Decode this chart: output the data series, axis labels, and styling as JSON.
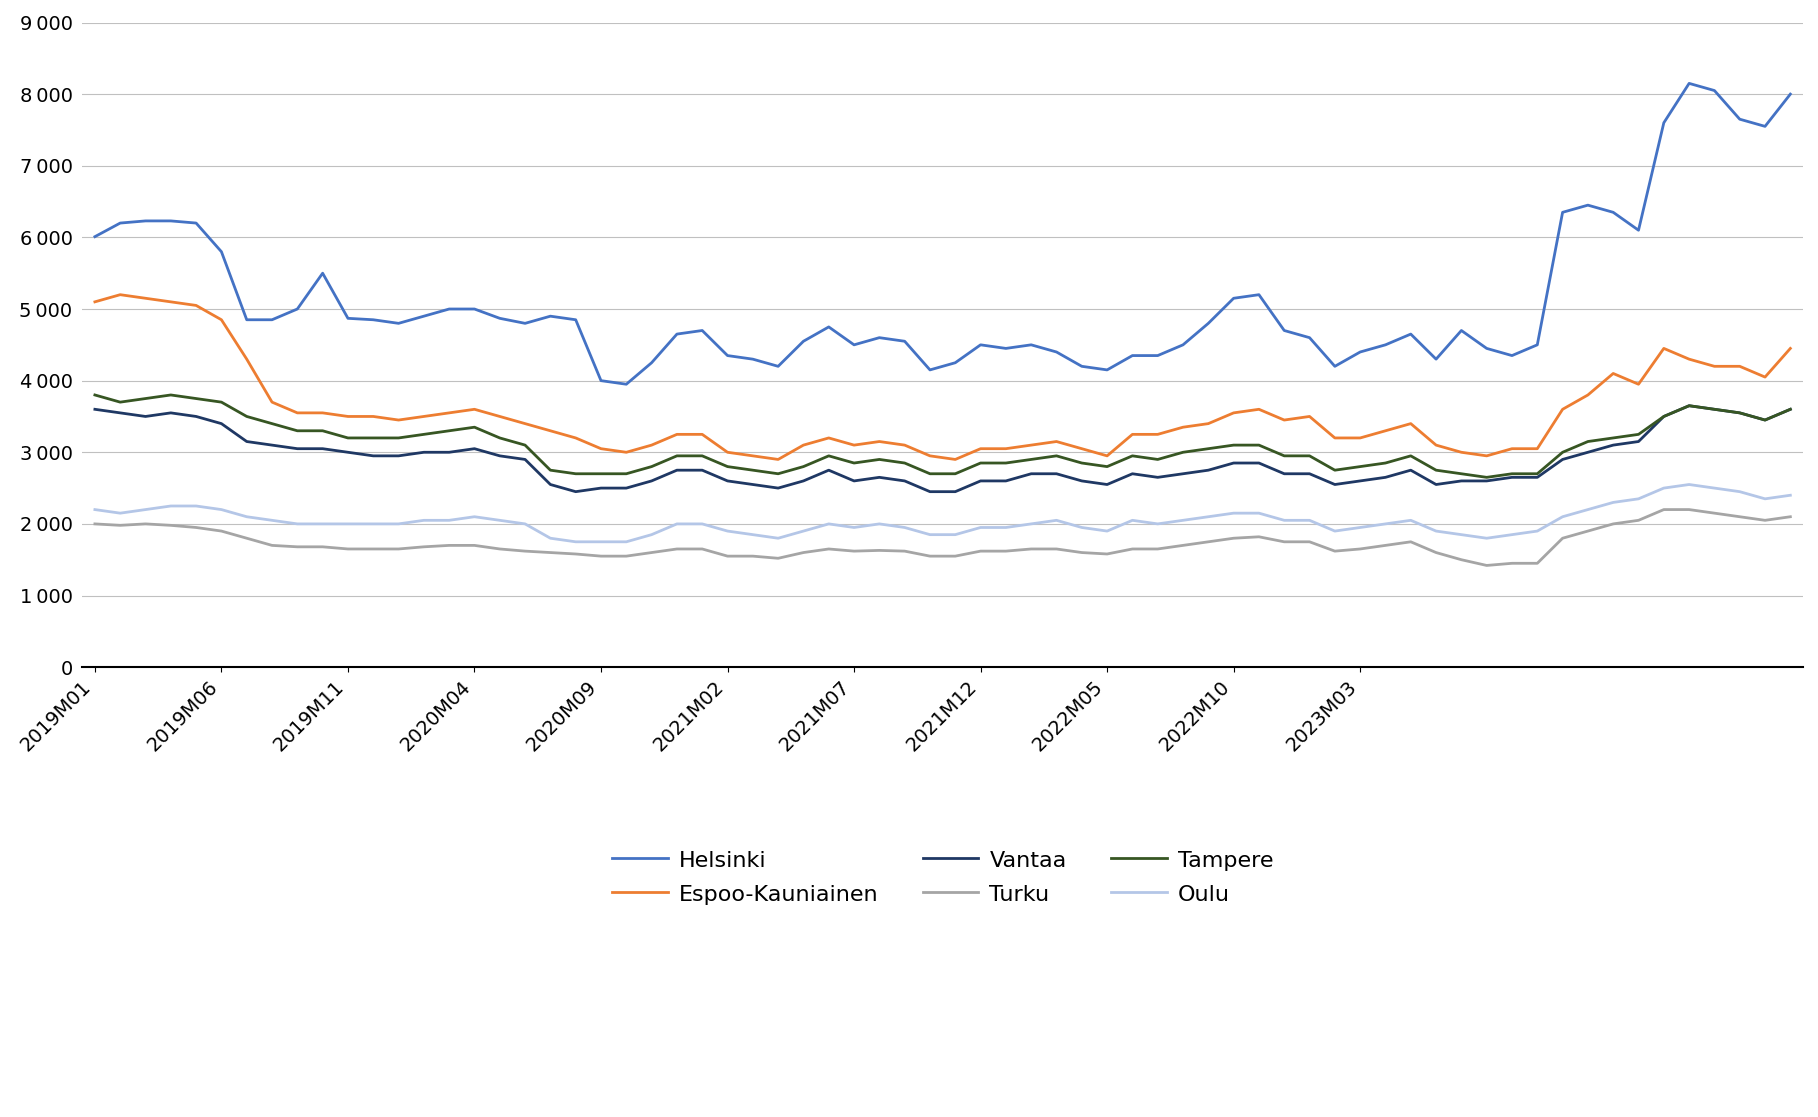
{
  "title": "",
  "xlabel": "",
  "ylabel": "",
  "ylim": [
    0,
    9000
  ],
  "yticks": [
    0,
    1000,
    2000,
    3000,
    4000,
    5000,
    6000,
    7000,
    8000,
    9000
  ],
  "x_labels": [
    "2019M01",
    "2019M06",
    "2019M11",
    "2020M04",
    "2020M09",
    "2021M02",
    "2021M07",
    "2021M12",
    "2022M05",
    "2022M10",
    "2023M03"
  ],
  "series": {
    "Helsinki": {
      "color": "#4472C4",
      "values": [
        6010,
        6200,
        6230,
        6230,
        6200,
        5800,
        4850,
        4850,
        5000,
        5500,
        4870,
        4850,
        4800,
        4900,
        5000,
        5000,
        4870,
        4800,
        4900,
        4850,
        4000,
        3950,
        4250,
        4650,
        4700,
        4350,
        4300,
        4200,
        4550,
        4750,
        4500,
        4600,
        4550,
        4150,
        4250,
        4500,
        4450,
        4500,
        4400,
        4200,
        4150,
        4350,
        4350,
        4500,
        4800,
        5150,
        5200,
        4700,
        4600,
        4200,
        4400,
        4500,
        4650,
        4300,
        4700,
        4450,
        4350,
        4500,
        6350,
        6450,
        6350,
        6100,
        7600,
        8150,
        8050,
        7650,
        7550,
        8000
      ]
    },
    "Espoo-Kauniainen": {
      "color": "#ED7D31",
      "values": [
        5100,
        5200,
        5150,
        5100,
        5050,
        4850,
        4300,
        3700,
        3550,
        3550,
        3500,
        3500,
        3450,
        3500,
        3550,
        3600,
        3500,
        3400,
        3300,
        3200,
        3050,
        3000,
        3100,
        3250,
        3250,
        3000,
        2950,
        2900,
        3100,
        3200,
        3100,
        3150,
        3100,
        2950,
        2900,
        3050,
        3050,
        3100,
        3150,
        3050,
        2950,
        3250,
        3250,
        3350,
        3400,
        3550,
        3600,
        3450,
        3500,
        3200,
        3200,
        3300,
        3400,
        3100,
        3000,
        2950,
        3050,
        3050,
        3600,
        3800,
        4100,
        3950,
        4450,
        4300,
        4200,
        4200,
        4050,
        4450
      ]
    },
    "Vantaa": {
      "color": "#1F3864",
      "values": [
        3600,
        3550,
        3500,
        3550,
        3500,
        3400,
        3150,
        3100,
        3050,
        3050,
        3000,
        2950,
        2950,
        3000,
        3000,
        3050,
        2950,
        2900,
        2550,
        2450,
        2500,
        2500,
        2600,
        2750,
        2750,
        2600,
        2550,
        2500,
        2600,
        2750,
        2600,
        2650,
        2600,
        2450,
        2450,
        2600,
        2600,
        2700,
        2700,
        2600,
        2550,
        2700,
        2650,
        2700,
        2750,
        2850,
        2850,
        2700,
        2700,
        2550,
        2600,
        2650,
        2750,
        2550,
        2600,
        2600,
        2650,
        2650,
        2900,
        3000,
        3100,
        3150,
        3500,
        3650,
        3600,
        3550,
        3450,
        3600
      ]
    },
    "Turku": {
      "color": "#A5A5A5",
      "values": [
        2000,
        1980,
        2000,
        1980,
        1950,
        1900,
        1800,
        1700,
        1680,
        1680,
        1650,
        1650,
        1650,
        1680,
        1700,
        1700,
        1650,
        1620,
        1600,
        1580,
        1550,
        1550,
        1600,
        1650,
        1650,
        1550,
        1550,
        1520,
        1600,
        1650,
        1620,
        1630,
        1620,
        1550,
        1550,
        1620,
        1620,
        1650,
        1650,
        1600,
        1580,
        1650,
        1650,
        1700,
        1750,
        1800,
        1820,
        1750,
        1750,
        1620,
        1650,
        1700,
        1750,
        1600,
        1500,
        1420,
        1450,
        1450,
        1800,
        1900,
        2000,
        2050,
        2200,
        2200,
        2150,
        2100,
        2050,
        2100
      ]
    },
    "Tampere": {
      "color": "#375623",
      "values": [
        3800,
        3700,
        3750,
        3800,
        3750,
        3700,
        3500,
        3400,
        3300,
        3300,
        3200,
        3200,
        3200,
        3250,
        3300,
        3350,
        3200,
        3100,
        2750,
        2700,
        2700,
        2700,
        2800,
        2950,
        2950,
        2800,
        2750,
        2700,
        2800,
        2950,
        2850,
        2900,
        2850,
        2700,
        2700,
        2850,
        2850,
        2900,
        2950,
        2850,
        2800,
        2950,
        2900,
        3000,
        3050,
        3100,
        3100,
        2950,
        2950,
        2750,
        2800,
        2850,
        2950,
        2750,
        2700,
        2650,
        2700,
        2700,
        3000,
        3150,
        3200,
        3250,
        3500,
        3650,
        3600,
        3550,
        3450,
        3600
      ]
    },
    "Oulu": {
      "color": "#B4C6E7",
      "values": [
        2200,
        2150,
        2200,
        2250,
        2250,
        2200,
        2100,
        2050,
        2000,
        2000,
        2000,
        2000,
        2000,
        2050,
        2050,
        2100,
        2050,
        2000,
        1800,
        1750,
        1750,
        1750,
        1850,
        2000,
        2000,
        1900,
        1850,
        1800,
        1900,
        2000,
        1950,
        2000,
        1950,
        1850,
        1850,
        1950,
        1950,
        2000,
        2050,
        1950,
        1900,
        2050,
        2000,
        2050,
        2100,
        2150,
        2150,
        2050,
        2050,
        1900,
        1950,
        2000,
        2050,
        1900,
        1850,
        1800,
        1850,
        1900,
        2100,
        2200,
        2300,
        2350,
        2500,
        2550,
        2500,
        2450,
        2350,
        2400
      ]
    }
  },
  "legend_order": [
    "Helsinki",
    "Espoo-Kauniainen",
    "Vantaa",
    "Turku",
    "Tampere",
    "Oulu"
  ],
  "x_tick_labels": [
    "2019M01",
    "2019M06",
    "2019M11",
    "2020M04",
    "2020M09",
    "2021M02",
    "2021M07",
    "2021M12",
    "2022M05",
    "2022M10",
    "2023M03"
  ]
}
